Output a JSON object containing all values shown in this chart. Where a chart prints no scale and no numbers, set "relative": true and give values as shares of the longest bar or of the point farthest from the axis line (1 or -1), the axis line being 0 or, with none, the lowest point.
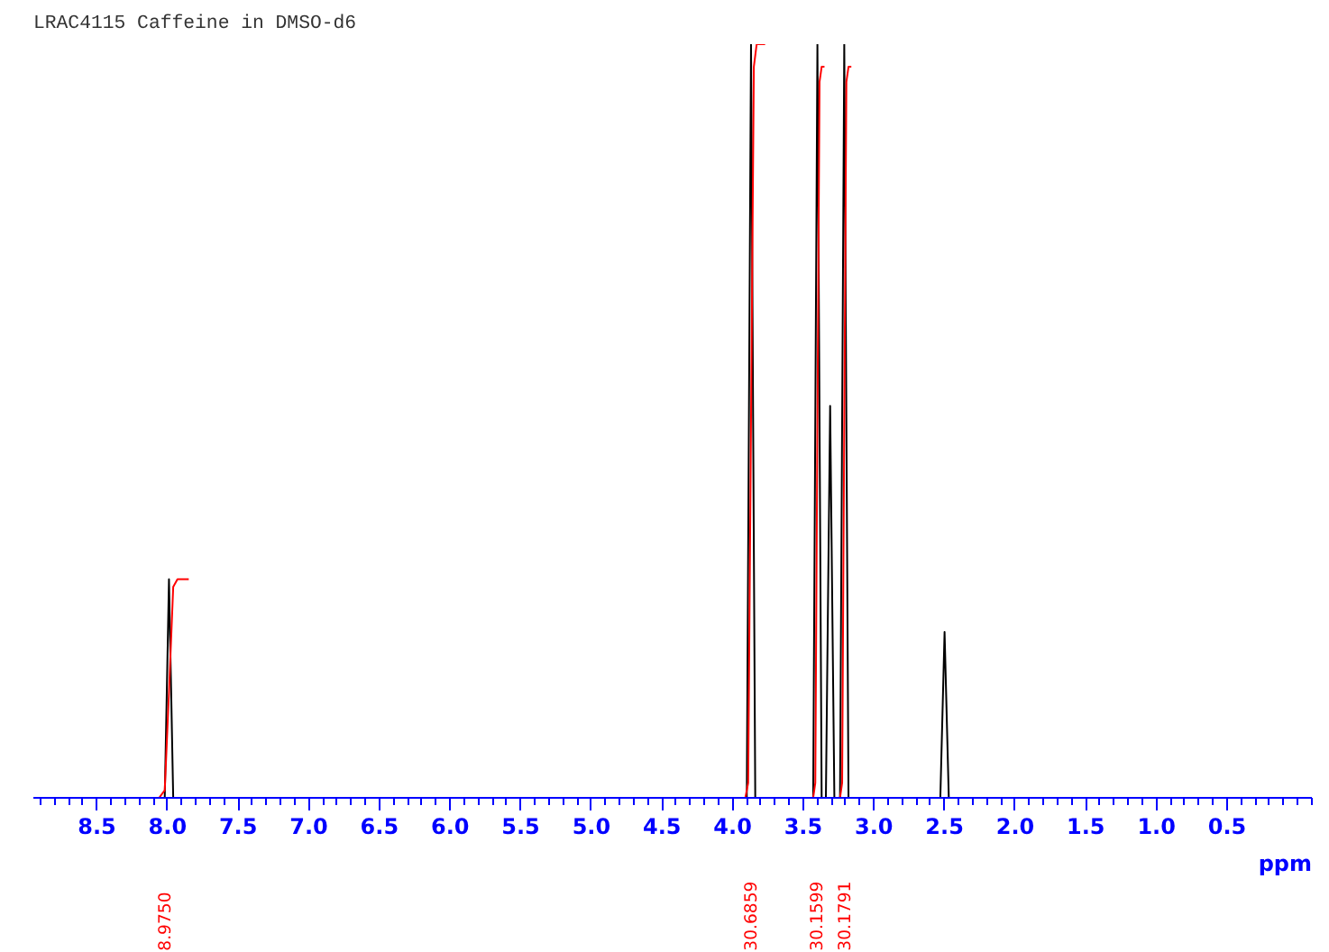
{
  "chart_data": {
    "type": "line",
    "title": "LRAC4115 Caffeine in DMSO-d6",
    "xlabel": "ppm",
    "relative": true,
    "xlim": [
      8.95,
      -0.1
    ],
    "xticks": [
      8.5,
      {
        "value": 8,
        "label": "8.0"
      },
      7.5,
      {
        "value": 7,
        "label": "7.0"
      },
      6.5,
      {
        "value": 6,
        "label": "6.0"
      },
      5.5,
      {
        "value": 5,
        "label": "5.0"
      },
      4.5,
      {
        "value": 4,
        "label": "4.0"
      },
      3.5,
      {
        "value": 3,
        "label": "3.0"
      },
      2.5,
      {
        "value": 2,
        "label": "2.0"
      },
      1.5,
      {
        "value": 1,
        "label": "1.0"
      },
      0.5
    ],
    "grid": false,
    "series": [
      {
        "color": "#000000",
        "x": [
          8.95,
          8.02,
          7.99,
          7.96,
          3.9,
          3.87,
          3.84,
          3.43,
          3.4,
          3.37,
          3.34,
          3.31,
          3.28,
          3.24,
          3.21,
          3.18,
          2.53,
          2.5,
          2.47,
          -0.1
        ],
        "values": [
          0,
          0,
          0.29,
          0,
          0,
          1,
          0,
          0,
          1,
          0,
          0,
          0.52,
          0,
          0,
          1,
          0,
          0,
          0.22,
          0,
          0
        ]
      },
      {
        "color": "#ff0000",
        "x": [
          8.2,
          8.06,
          8.02,
          7.99,
          7.96,
          7.93,
          7.85
        ],
        "values": [
          0,
          0,
          0.01,
          0.14,
          0.28,
          0.29,
          0.29
        ]
      },
      {
        "color": "#ff0000",
        "x": [
          3.98,
          3.91,
          3.89,
          3.87,
          3.85,
          3.83,
          3.77
        ],
        "values": [
          0,
          0,
          0.02,
          0.5,
          0.97,
          1,
          1
        ]
      },
      {
        "color": "#ff0000",
        "x": [
          3.47,
          3.43,
          3.415,
          3.4,
          3.385,
          3.37,
          3.35
        ],
        "values": [
          0,
          0,
          0.02,
          0.5,
          0.95,
          0.97,
          0.97
        ]
      },
      {
        "color": "#ff0000",
        "x": [
          3.27,
          3.24,
          3.225,
          3.21,
          3.195,
          3.18,
          3.16
        ],
        "values": [
          0,
          0,
          0.02,
          0.5,
          0.95,
          0.97,
          0.97
        ]
      }
    ],
    "annotations": [
      "8.9750",
      "30.6859",
      "30.1599",
      "30.1791"
    ]
  }
}
